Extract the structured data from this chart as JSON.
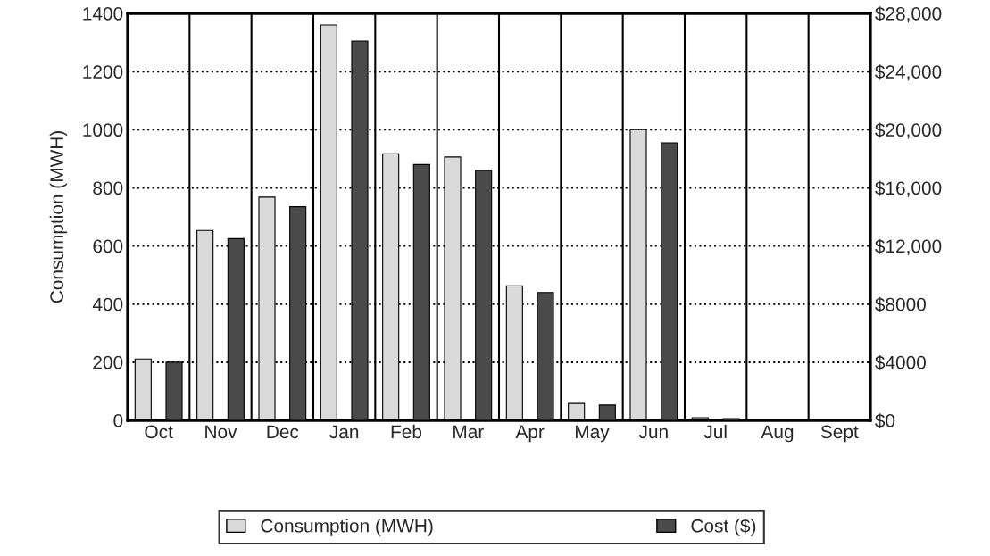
{
  "chart_data": {
    "type": "bar",
    "categories": [
      "Oct",
      "Nov",
      "Dec",
      "Jan",
      "Feb",
      "Mar",
      "Apr",
      "May",
      "Jun",
      "Jul",
      "Aug",
      "Sept"
    ],
    "ylabel": "Consumption (MWH)",
    "series": [
      {
        "name": "Consumption (MWH)",
        "color": "#dadada",
        "values": [
          211,
          653,
          768,
          1360,
          917,
          906,
          463,
          58,
          1000,
          9,
          0,
          0
        ]
      },
      {
        "name": "Cost ($)",
        "color": "#4a4a4a",
        "axis": "y2",
        "values": [
          4000,
          12500,
          14700,
          26100,
          17600,
          17200,
          8800,
          1050,
          19100,
          120,
          0,
          0
        ]
      }
    ],
    "ylim": [
      0,
      1400
    ],
    "yticks": [
      0,
      200,
      400,
      600,
      800,
      1000,
      1200,
      1400
    ],
    "y2lim": [
      0,
      28000
    ],
    "y2ticks": [
      {
        "value": 0,
        "label": "$0"
      },
      {
        "value": 4000,
        "label": "$4000"
      },
      {
        "value": 8000,
        "label": "$8000"
      },
      {
        "value": 12000,
        "label": "$12,000"
      },
      {
        "value": 16000,
        "label": "$16,000"
      },
      {
        "value": 20000,
        "label": "$20,000"
      },
      {
        "value": 24000,
        "label": "$24,000"
      },
      {
        "value": 28000,
        "label": "$28,000"
      }
    ],
    "grid": true,
    "legend": "bottom"
  }
}
